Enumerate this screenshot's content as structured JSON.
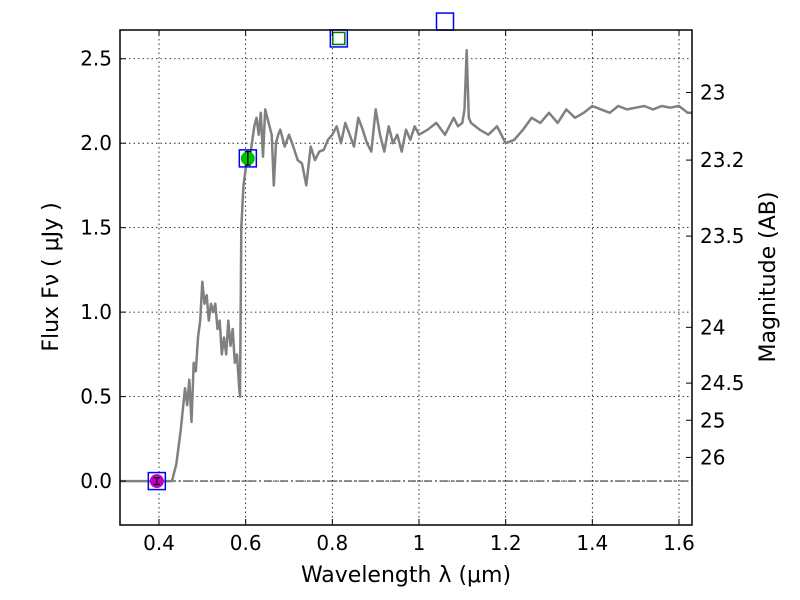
{
  "chart_data": {
    "type": "line",
    "title": "",
    "xlabel": "Wavelength  λ (μm)",
    "ylabel": "Flux  Fν  ( μJy )",
    "y2label": "Magnitude (AB)",
    "xlim": [
      0.31,
      1.63
    ],
    "ylim": [
      -0.26,
      2.67
    ],
    "grid": true,
    "xticks": [
      0.4,
      0.6,
      0.8,
      1.0,
      1.2,
      1.4,
      1.6
    ],
    "xtick_labels": [
      "0.4",
      "0.6",
      "0.8",
      "1",
      "1.2",
      "1.4",
      "1.6"
    ],
    "yticks": [
      0.0,
      0.5,
      1.0,
      1.5,
      2.0,
      2.5
    ],
    "ytick_labels": [
      "0.0",
      "0.5",
      "1.0",
      "1.5",
      "2.0",
      "2.5"
    ],
    "y2ticks": [
      {
        "label": "23",
        "flux": 2.3
      },
      {
        "label": "23.2",
        "flux": 1.9
      },
      {
        "label": "23.5",
        "flux": 1.45
      },
      {
        "label": "24",
        "flux": 0.91
      },
      {
        "label": "24.5",
        "flux": 0.58
      },
      {
        "label": "25",
        "flux": 0.36
      },
      {
        "label": "26",
        "flux": 0.14
      }
    ],
    "zero_line": 0.0,
    "colors": {
      "spectrum": "#808080",
      "box": "#0000ff",
      "box_green": "#008000",
      "point_green": "#00c000",
      "point_magenta": "#c000c0"
    },
    "series": [
      {
        "color": "#808080",
        "x": [
          0.31,
          0.43,
          0.44,
          0.45,
          0.46,
          0.465,
          0.47,
          0.475,
          0.48,
          0.485,
          0.49,
          0.495,
          0.5,
          0.505,
          0.51,
          0.515,
          0.52,
          0.525,
          0.53,
          0.535,
          0.54,
          0.545,
          0.55,
          0.555,
          0.56,
          0.565,
          0.57,
          0.575,
          0.58,
          0.585,
          0.587,
          0.59,
          0.595,
          0.6,
          0.605,
          0.61,
          0.62,
          0.625,
          0.63,
          0.635,
          0.64,
          0.645,
          0.65,
          0.655,
          0.66,
          0.665,
          0.67,
          0.675,
          0.68,
          0.69,
          0.7,
          0.71,
          0.72,
          0.73,
          0.74,
          0.75,
          0.76,
          0.77,
          0.78,
          0.79,
          0.8,
          0.81,
          0.82,
          0.83,
          0.84,
          0.85,
          0.86,
          0.87,
          0.88,
          0.89,
          0.9,
          0.91,
          0.92,
          0.93,
          0.94,
          0.95,
          0.96,
          0.97,
          0.98,
          0.99,
          1.0,
          1.02,
          1.04,
          1.06,
          1.08,
          1.09,
          1.1,
          1.105,
          1.11,
          1.115,
          1.12,
          1.14,
          1.16,
          1.18,
          1.2,
          1.22,
          1.24,
          1.26,
          1.28,
          1.3,
          1.32,
          1.34,
          1.36,
          1.38,
          1.4,
          1.42,
          1.44,
          1.46,
          1.48,
          1.5,
          1.52,
          1.54,
          1.56,
          1.58,
          1.6,
          1.62,
          1.63
        ],
        "y": [
          0.0,
          0.0,
          0.1,
          0.3,
          0.55,
          0.45,
          0.6,
          0.35,
          0.7,
          0.65,
          0.85,
          0.95,
          1.18,
          1.05,
          1.1,
          0.95,
          1.05,
          1.0,
          1.05,
          0.9,
          0.95,
          0.75,
          0.85,
          0.75,
          0.95,
          0.8,
          0.9,
          0.7,
          0.75,
          0.55,
          0.5,
          1.5,
          1.75,
          1.85,
          1.95,
          1.92,
          2.1,
          2.15,
          2.05,
          2.18,
          1.92,
          2.2,
          2.15,
          2.1,
          2.05,
          1.75,
          2.0,
          2.05,
          2.08,
          1.98,
          2.05,
          1.98,
          1.9,
          1.88,
          1.75,
          1.98,
          1.9,
          1.95,
          1.96,
          2.02,
          2.05,
          2.1,
          2.0,
          2.12,
          2.05,
          1.98,
          2.15,
          2.08,
          2.0,
          1.95,
          2.2,
          2.05,
          1.95,
          2.1,
          2.0,
          2.05,
          1.95,
          2.08,
          2.02,
          2.1,
          2.05,
          2.08,
          2.12,
          2.05,
          2.15,
          2.1,
          2.12,
          2.2,
          2.55,
          2.15,
          2.12,
          2.08,
          2.05,
          2.1,
          2.0,
          2.02,
          2.08,
          2.15,
          2.12,
          2.18,
          2.12,
          2.2,
          2.15,
          2.18,
          2.22,
          2.2,
          2.18,
          2.22,
          2.2,
          2.21,
          2.22,
          2.2,
          2.22,
          2.21,
          2.22,
          2.18,
          2.18
        ]
      }
    ],
    "photometry_points": [
      {
        "x": 0.395,
        "y": 0.0,
        "marker": "circle",
        "color": "#c000c0",
        "box_color": "#0000ff",
        "yerr": 0.02
      },
      {
        "x": 0.605,
        "y": 1.91,
        "marker": "circle",
        "color": "#00c000",
        "box_color": "#0000ff",
        "yerr": 0.04
      },
      {
        "x": 0.815,
        "y": 2.62,
        "marker": "square-open",
        "color": "#008000",
        "box_color": "#0000ff",
        "yerr": 0
      },
      {
        "x": 1.06,
        "y": 2.72,
        "marker": "none",
        "color": "#0000ff",
        "box_color": "#0000ff",
        "yerr": 0
      }
    ]
  }
}
